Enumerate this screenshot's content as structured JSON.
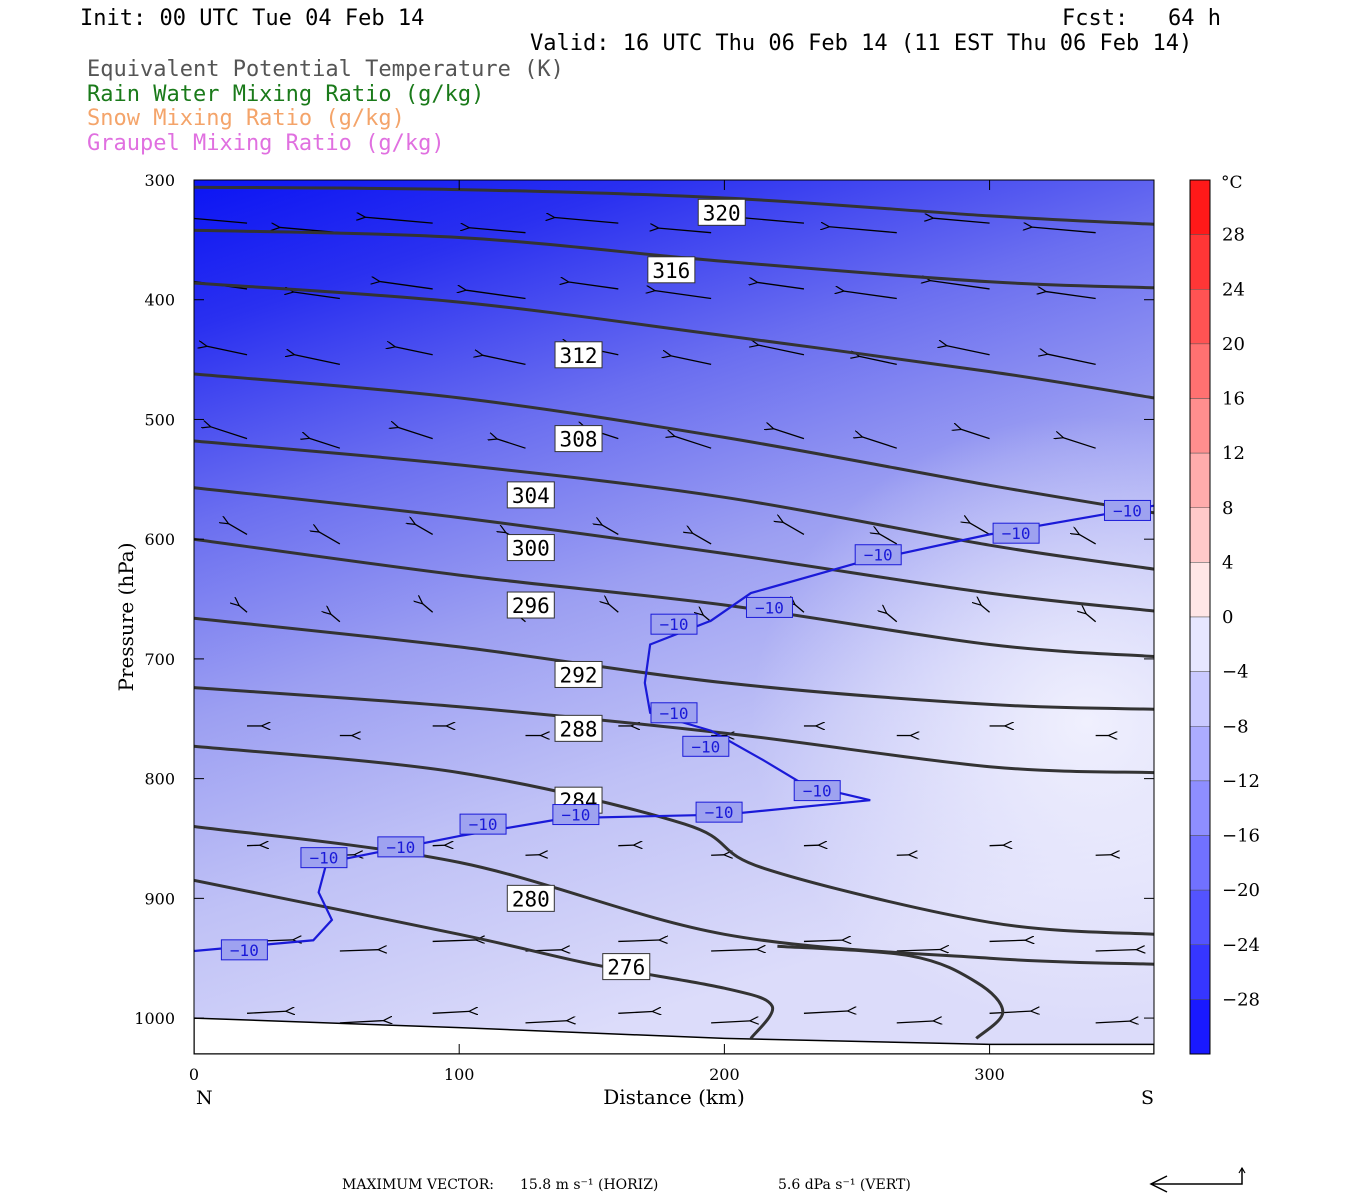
{
  "header": {
    "init": "Init: 00 UTC Tue 04 Feb 14",
    "fcst": "Fcst:   64 h",
    "valid": "Valid: 16 UTC Thu 06 Feb 14 (11 EST Thu 06 Feb 14)",
    "legend": [
      {
        "text": "Equivalent Potential Temperature (K)",
        "color": "#555555"
      },
      {
        "text": "Rain Water Mixing Ratio (g/kg)",
        "color": "#1a7a1a"
      },
      {
        "text": "Snow Mixing Ratio (g/kg)",
        "color": "#f4a46a"
      },
      {
        "text": "Graupel Mixing Ratio (g/kg)",
        "color": "#e070e0"
      }
    ]
  },
  "footer": {
    "label": "MAXIMUM VECTOR:",
    "horiz": "15.8 m s⁻¹ (HORIZ)",
    "vert": "5.6 dPa s⁻¹ (VERT)"
  },
  "chart_data": {
    "type": "contour",
    "xlabel": "Distance (km)",
    "ylabel": "Pressure (hPa)",
    "xlim": [
      0,
      362
    ],
    "ylim": [
      1030,
      300
    ],
    "x_ticks": [
      0,
      100,
      200,
      300
    ],
    "y_ticks": [
      300,
      400,
      500,
      600,
      700,
      800,
      900,
      1000
    ],
    "left_end_label": "N",
    "right_end_label": "S",
    "colorbar": {
      "unit": "°C",
      "labels": [
        28,
        24,
        20,
        16,
        12,
        8,
        4,
        0,
        -4,
        -8,
        -12,
        -16,
        -20,
        -24,
        -28
      ],
      "min": -32,
      "max": 32,
      "step": 4
    },
    "theta_e_contours": [
      {
        "label": "320",
        "label_at": [
          199,
          327
        ],
        "points": [
          [
            0,
            306
          ],
          [
            100,
            308
          ],
          [
            200,
            315
          ],
          [
            300,
            330
          ],
          [
            362,
            337
          ]
        ]
      },
      {
        "label": "316",
        "label_at": [
          180,
          375
        ],
        "points": [
          [
            0,
            342
          ],
          [
            100,
            348
          ],
          [
            200,
            368
          ],
          [
            300,
            385
          ],
          [
            362,
            390
          ]
        ]
      },
      {
        "label": "312",
        "label_at": [
          145,
          446
        ],
        "points": [
          [
            0,
            386
          ],
          [
            100,
            402
          ],
          [
            200,
            430
          ],
          [
            300,
            460
          ],
          [
            362,
            482
          ]
        ]
      },
      {
        "label": "308",
        "label_at": [
          145,
          516
        ],
        "points": [
          [
            0,
            462
          ],
          [
            100,
            482
          ],
          [
            200,
            515
          ],
          [
            300,
            555
          ],
          [
            362,
            578
          ]
        ]
      },
      {
        "label": "304",
        "label_at": [
          127,
          563
        ],
        "points": [
          [
            0,
            518
          ],
          [
            100,
            538
          ],
          [
            200,
            565
          ],
          [
            300,
            605
          ],
          [
            362,
            625
          ]
        ]
      },
      {
        "label": "300",
        "label_at": [
          127,
          607
        ],
        "points": [
          [
            0,
            557
          ],
          [
            100,
            582
          ],
          [
            200,
            612
          ],
          [
            300,
            645
          ],
          [
            362,
            660
          ]
        ]
      },
      {
        "label": "296",
        "label_at": [
          127,
          655
        ],
        "points": [
          [
            0,
            600
          ],
          [
            100,
            630
          ],
          [
            200,
            655
          ],
          [
            300,
            688
          ],
          [
            362,
            698
          ]
        ]
      },
      {
        "label": "292",
        "label_at": [
          145,
          713
        ],
        "points": [
          [
            0,
            666
          ],
          [
            100,
            690
          ],
          [
            200,
            720
          ],
          [
            300,
            738
          ],
          [
            362,
            742
          ]
        ]
      },
      {
        "label": "288",
        "label_at": [
          145,
          758
        ],
        "points": [
          [
            0,
            724
          ],
          [
            100,
            740
          ],
          [
            200,
            762
          ],
          [
            300,
            790
          ],
          [
            362,
            795
          ]
        ]
      },
      {
        "label": "284",
        "label_at": [
          145,
          818
        ],
        "points": [
          [
            0,
            773
          ],
          [
            100,
            795
          ],
          [
            185,
            838
          ],
          [
            215,
            875
          ],
          [
            300,
            920
          ],
          [
            362,
            930
          ]
        ]
      },
      {
        "label": "280",
        "label_at": [
          127,
          900
        ],
        "points": [
          [
            0,
            840
          ],
          [
            100,
            870
          ],
          [
            200,
            930
          ],
          [
            300,
            950
          ],
          [
            362,
            955
          ]
        ]
      },
      {
        "label": "276",
        "label_at": [
          163,
          957
        ],
        "points": [
          [
            0,
            885
          ],
          [
            100,
            930
          ],
          [
            150,
            955
          ],
          [
            200,
            975
          ],
          [
            218,
            990
          ],
          [
            210,
            1017
          ]
        ]
      },
      {
        "label": "",
        "label_at": null,
        "points": [
          [
            220,
            940
          ],
          [
            270,
            948
          ],
          [
            295,
            970
          ],
          [
            305,
            995
          ],
          [
            295,
            1017
          ]
        ]
      }
    ],
    "isotherm_minus10": {
      "label": "−10",
      "points": [
        [
          0,
          944
        ],
        [
          45,
          935
        ],
        [
          52,
          918
        ],
        [
          47,
          895
        ],
        [
          50,
          870
        ],
        [
          100,
          848
        ],
        [
          140,
          833
        ],
        [
          200,
          830
        ],
        [
          255,
          818
        ],
        [
          230,
          805
        ],
        [
          215,
          785
        ],
        [
          195,
          760
        ],
        [
          172,
          745
        ],
        [
          170,
          720
        ],
        [
          172,
          688
        ],
        [
          195,
          668
        ],
        [
          210,
          645
        ],
        [
          250,
          620
        ],
        [
          300,
          596
        ],
        [
          362,
          572
        ]
      ],
      "label_positions": [
        [
          19,
          943
        ],
        [
          49,
          866
        ],
        [
          78,
          857
        ],
        [
          109,
          838
        ],
        [
          144,
          830
        ],
        [
          198,
          828
        ],
        [
          235,
          810
        ],
        [
          193,
          773
        ],
        [
          181,
          745
        ],
        [
          181,
          671
        ],
        [
          217,
          657
        ],
        [
          258,
          613
        ],
        [
          310,
          595
        ],
        [
          352,
          576
        ]
      ]
    },
    "terrain_pressure": {
      "x": [
        0,
        100,
        200,
        300,
        362
      ],
      "p": [
        1000,
        1008,
        1017,
        1022,
        1022
      ]
    },
    "wind_vector_scale": {
      "max_horiz_mps": 15.8,
      "max_vert_dPa_s": 5.6
    }
  }
}
